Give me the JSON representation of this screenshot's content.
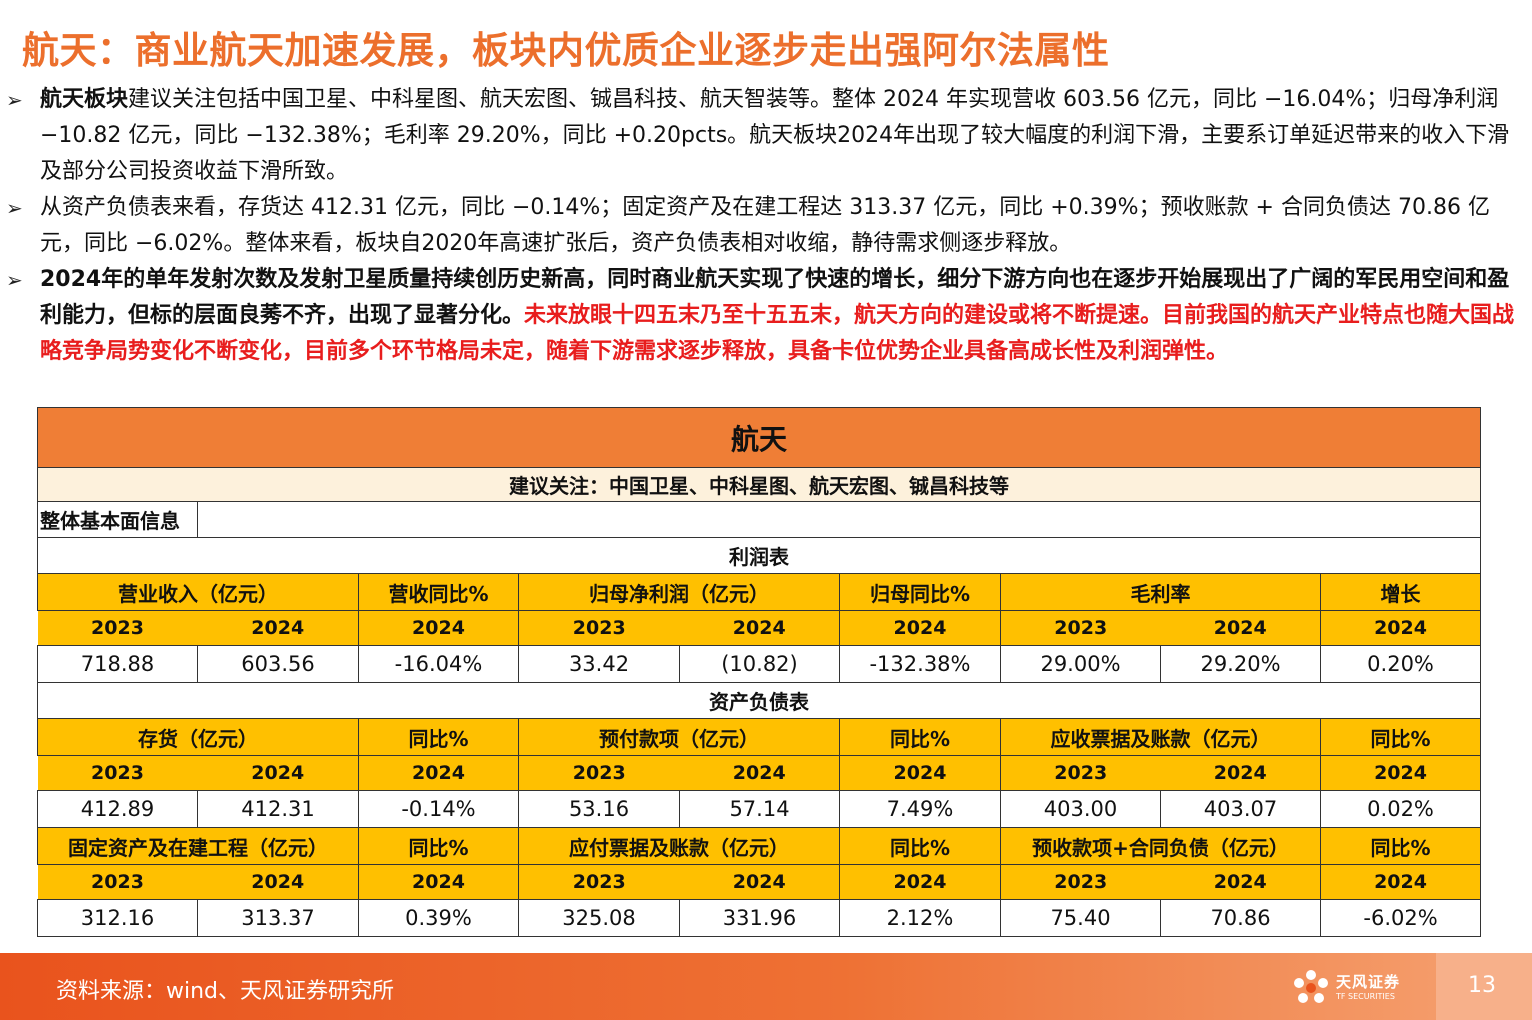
{
  "title": "航天：商业航天加速发展，板块内优质企业逐步走出强阿尔法属性",
  "bullets": [
    {
      "lead": "航天板块",
      "text": "建议关注包括中国卫星、中科星图、航天宏图、铖昌科技、航天智装等。整体 2024 年实现营收 603.56 亿元，同比 −16.04%；归母净利润 −10.82 亿元，同比 −132.38%；毛利率 29.20%，同比 +0.20pcts。航天板块2024年出现了较大幅度的利润下滑，主要系订单延迟带来的收入下滑及部分公司投资收益下滑所致。"
    },
    {
      "text": "从资产负债表来看，存货达 412.31 亿元，同比 −0.14%；固定资产及在建工程达 313.37 亿元，同比 +0.39%；预收账款 + 合同负债达 70.86 亿元，同比 −6.02%。整体来看，板块自2020年高速扩张后，资产负债表相对收缩，静待需求侧逐步释放。"
    },
    {
      "text": "2024年的单年发射次数及发射卫星质量持续创历史新高，同时商业航天实现了快速的增长，细分下游方向也在逐步开始展现出了广阔的军民用空间和盈利能力，但标的层面良莠不齐，出现了显著分化。",
      "red": "未来放眼十四五末乃至十五五末，航天方向的建设或将不断提速。目前我国的航天产业特点也随大国战略竞争局势变化不断变化，目前多个环节格局未定，随着下游需求逐步释放，具备卡位优势企业具备高成长性及利润弹性。"
    }
  ],
  "table": {
    "title": "航天",
    "subtitle": "建议关注：中国卫星、中科星图、航天宏图、铖昌科技等",
    "info_label": "整体基本面信息",
    "income_label": "利润表",
    "income_headers": [
      "营业收入（亿元）",
      "营收同比%",
      "归母净利润（亿元）",
      "归母同比%",
      "毛利率",
      "增长"
    ],
    "years": [
      "2023",
      "2024",
      "2024",
      "2023",
      "2024",
      "2024",
      "2023",
      "2024",
      "2024"
    ],
    "income_values": [
      "718.88",
      "603.56",
      "-16.04%",
      "33.42",
      "(10.82)",
      "-132.38%",
      "29.00%",
      "29.20%",
      "0.20%"
    ],
    "balance_label": "资产负债表",
    "balance_headers_1": [
      "存货（亿元）",
      "同比%",
      "预付款项（亿元）",
      "同比%",
      "应收票据及账款（亿元）",
      "同比%"
    ],
    "balance_values_1": [
      "412.89",
      "412.31",
      "-0.14%",
      "53.16",
      "57.14",
      "7.49%",
      "403.00",
      "403.07",
      "0.02%"
    ],
    "balance_headers_2": [
      "固定资产及在建工程（亿元）",
      "同比%",
      "应付票据及账款（亿元）",
      "同比%",
      "预收款项+合同负债（亿元）",
      "同比%"
    ],
    "balance_values_2": [
      "312.16",
      "313.37",
      "0.39%",
      "325.08",
      "331.96",
      "2.12%",
      "75.40",
      "70.86",
      "-6.02%"
    ]
  },
  "footer": {
    "source": "资料来源：wind、天风证券研究所",
    "logo_cn": "天风证券",
    "logo_en": "TF SECURITIES",
    "page_number": "13"
  },
  "colors": {
    "title": "#ec6f2c",
    "table_title_bg": "#ef7e36",
    "header_bg": "#ffc000",
    "highlight_text": "#e81d1d"
  }
}
